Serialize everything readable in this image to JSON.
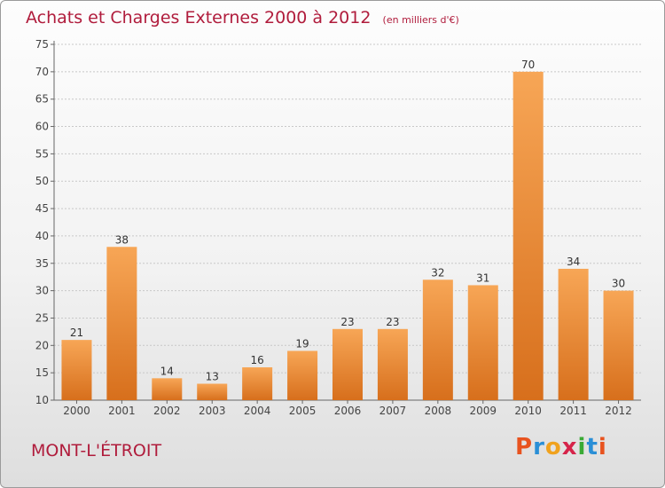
{
  "header": {
    "title": "Achats et Charges Externes 2000 à 2012",
    "unit": "(en milliers d'€)"
  },
  "location": "MONT-L'ÉTROIT",
  "brand": {
    "name": "Proxiti",
    "colors": [
      "#e8531f",
      "#2a8fd6",
      "#f0a21e",
      "#d6244a",
      "#3aaa35",
      "#2a8fd6",
      "#e8531f"
    ]
  },
  "colors": {
    "bar_light": "#f7a656",
    "bar_dark": "#d76f1c",
    "title": "#b01c3c",
    "axis": "#666666",
    "grid": "#c8c8c8"
  },
  "chart_data": {
    "type": "bar",
    "title": "Achats et Charges Externes 2000 à 2012",
    "categories": [
      "2000",
      "2001",
      "2002",
      "2003",
      "2004",
      "2005",
      "2006",
      "2007",
      "2008",
      "2009",
      "2010",
      "2011",
      "2012"
    ],
    "values": [
      21,
      38,
      14,
      13,
      16,
      19,
      23,
      23,
      32,
      31,
      70,
      34,
      30
    ],
    "ylim": [
      10,
      75
    ],
    "yticks": [
      10,
      15,
      20,
      25,
      30,
      35,
      40,
      45,
      50,
      55,
      60,
      65,
      70,
      75
    ],
    "grid": true,
    "data_labels": true
  }
}
